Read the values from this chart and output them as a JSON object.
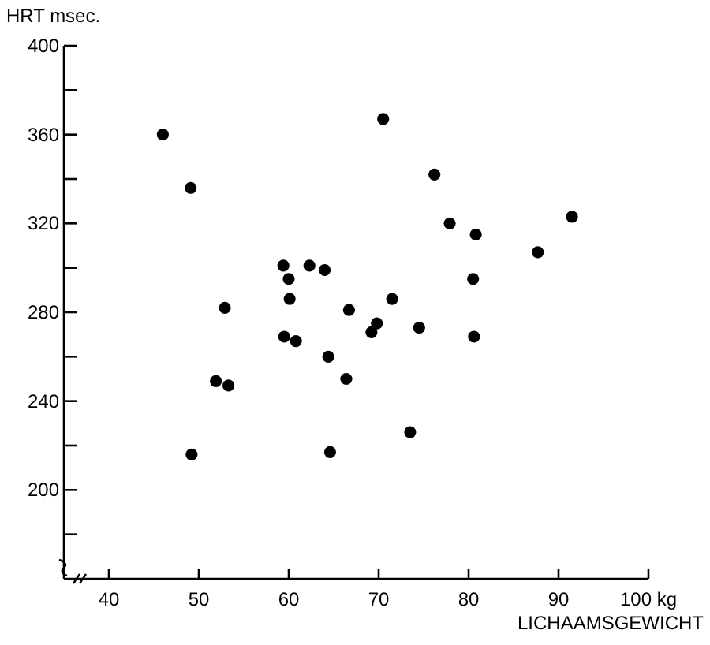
{
  "chart_data": {
    "type": "scatter",
    "ylabel": "HRT msec.",
    "xlabel": "LICHAAMSGEWICHT",
    "x": [
      46.0,
      49.1,
      51.9,
      53.3,
      52.9,
      49.2,
      59.4,
      60.0,
      60.1,
      59.5,
      60.8,
      62.3,
      64.0,
      64.4,
      64.6,
      66.4,
      66.7,
      70.5,
      76.2,
      77.9,
      80.8,
      91.5,
      87.7,
      80.5,
      71.5,
      69.8,
      69.2,
      74.5,
      80.6,
      73.5
    ],
    "values": [
      360,
      336,
      249,
      247,
      282,
      216,
      301,
      295,
      286,
      269,
      267,
      301,
      299,
      260,
      217,
      250,
      281,
      367,
      342,
      320,
      315,
      323,
      307,
      295,
      286,
      275,
      271,
      273,
      269,
      226
    ],
    "color": "#000000",
    "marker": "circle",
    "grid": false,
    "xlim": [
      35,
      100
    ],
    "ylim": [
      160,
      400
    ],
    "xticks": [
      40,
      50,
      60,
      70,
      80,
      90,
      {
        "value": 100,
        "label": "100 kg"
      }
    ],
    "yticks": [
      {
        "value": 180,
        "label": null
      },
      200,
      {
        "value": 220,
        "label": null
      },
      240,
      {
        "value": 260,
        "label": null
      },
      280,
      {
        "value": 300,
        "label": null
      },
      320,
      {
        "value": 340,
        "label": null
      },
      360,
      {
        "value": 380,
        "label": null
      },
      400
    ]
  }
}
